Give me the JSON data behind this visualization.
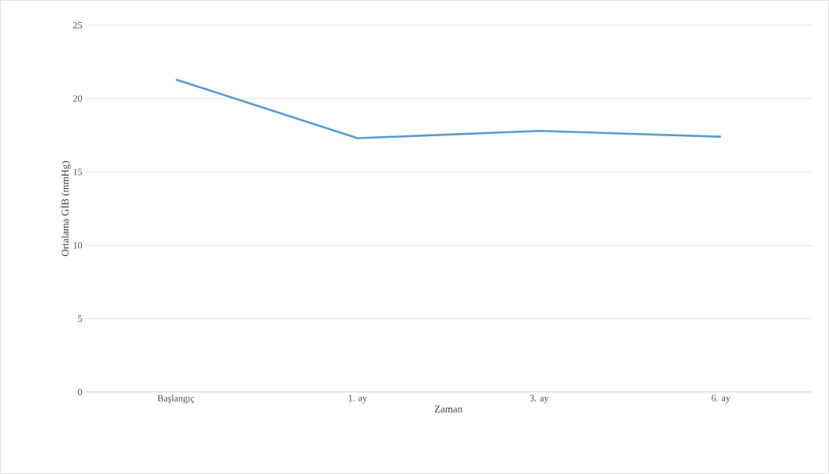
{
  "chart_data": {
    "type": "line",
    "xlabel": "Zaman",
    "ylabel": "Ortalama GİB (mmHg)",
    "categories": [
      "Başlangıç",
      "1. ay",
      "3. ay",
      "6. ay"
    ],
    "values": [
      21.3,
      17.3,
      17.8,
      17.4
    ],
    "color": "#5b9bd5",
    "ylim": [
      0,
      25
    ],
    "yticks": [
      0,
      5,
      10,
      15,
      20,
      25
    ],
    "grid": "y",
    "marker": "none",
    "line_style": "solid"
  }
}
